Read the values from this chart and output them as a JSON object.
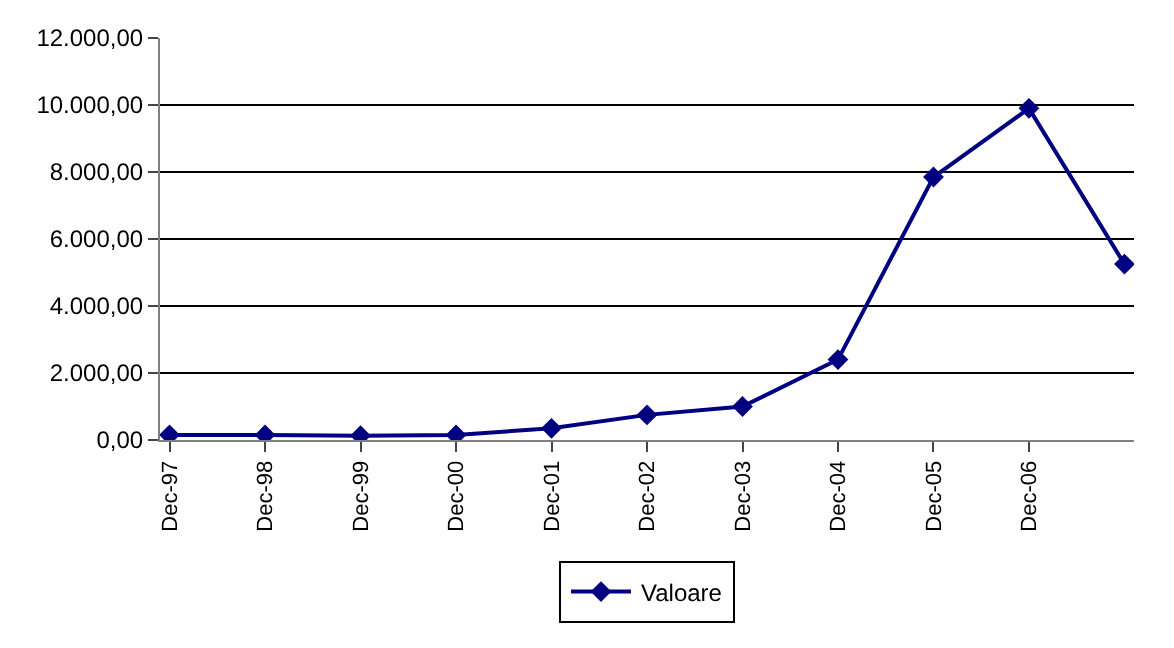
{
  "chart_data": {
    "type": "line",
    "categories": [
      "Dec-97",
      "Dec-98",
      "Dec-99",
      "Dec-00",
      "Dec-01",
      "Dec-02",
      "Dec-03",
      "Dec-04",
      "Dec-05",
      "Dec-06",
      null
    ],
    "series": [
      {
        "name": "Valoare",
        "color": "#000080",
        "values": [
          150,
          150,
          130,
          150,
          350,
          750,
          1000,
          2400,
          7850,
          9900,
          5250
        ]
      }
    ],
    "ylim": [
      0,
      12000
    ],
    "yticks": [
      {
        "value": 0,
        "label": "0,00"
      },
      {
        "value": 2000,
        "label": "2.000,00"
      },
      {
        "value": 4000,
        "label": "4.000,00"
      },
      {
        "value": 6000,
        "label": "6.000,00"
      },
      {
        "value": 8000,
        "label": "8.000,00"
      },
      {
        "value": 10000,
        "label": "10.000,00"
      },
      {
        "value": 12000,
        "label": "12.000,00"
      }
    ],
    "grid": "y",
    "legend": "bottom",
    "marker": "diamond",
    "line_style": "solid"
  }
}
